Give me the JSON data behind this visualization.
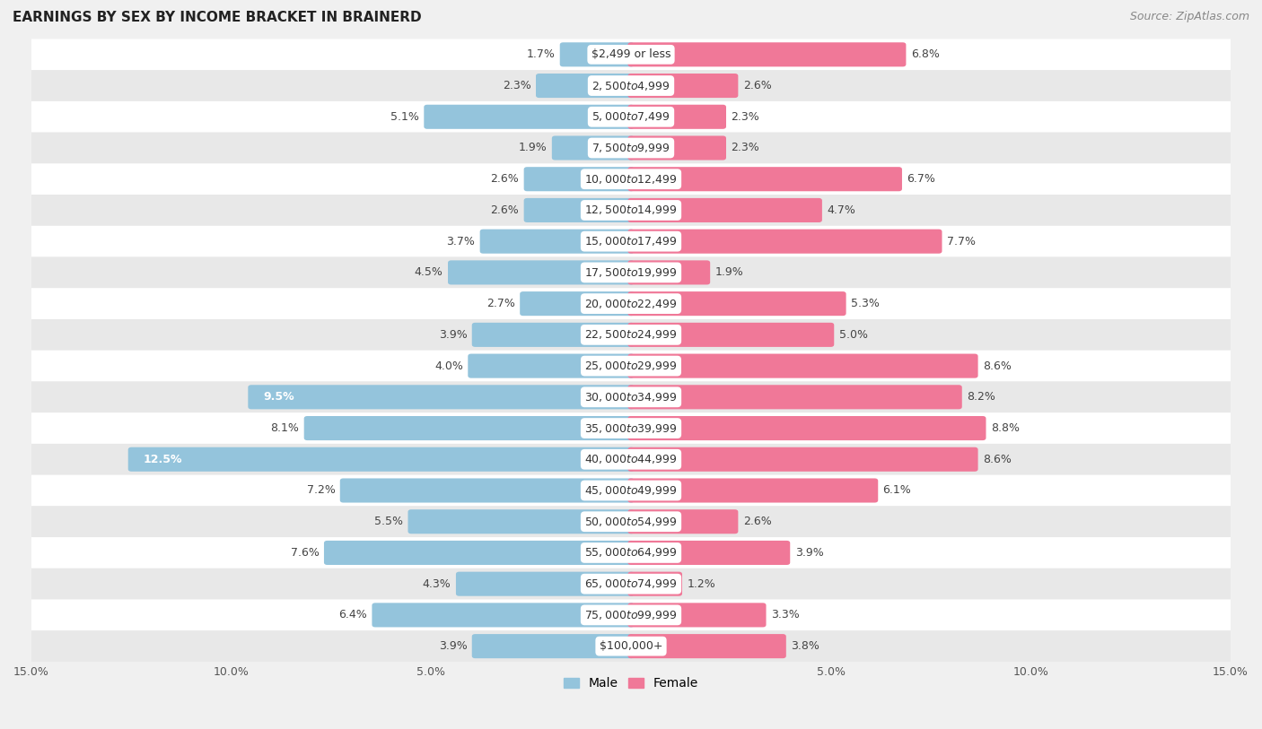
{
  "title": "EARNINGS BY SEX BY INCOME BRACKET IN BRAINERD",
  "source": "Source: ZipAtlas.com",
  "categories": [
    "$2,499 or less",
    "$2,500 to $4,999",
    "$5,000 to $7,499",
    "$7,500 to $9,999",
    "$10,000 to $12,499",
    "$12,500 to $14,999",
    "$15,000 to $17,499",
    "$17,500 to $19,999",
    "$20,000 to $22,499",
    "$22,500 to $24,999",
    "$25,000 to $29,999",
    "$30,000 to $34,999",
    "$35,000 to $39,999",
    "$40,000 to $44,999",
    "$45,000 to $49,999",
    "$50,000 to $54,999",
    "$55,000 to $64,999",
    "$65,000 to $74,999",
    "$75,000 to $99,999",
    "$100,000+"
  ],
  "male_values": [
    1.7,
    2.3,
    5.1,
    1.9,
    2.6,
    2.6,
    3.7,
    4.5,
    2.7,
    3.9,
    4.0,
    9.5,
    8.1,
    12.5,
    7.2,
    5.5,
    7.6,
    4.3,
    6.4,
    3.9
  ],
  "female_values": [
    6.8,
    2.6,
    2.3,
    2.3,
    6.7,
    4.7,
    7.7,
    1.9,
    5.3,
    5.0,
    8.6,
    8.2,
    8.8,
    8.6,
    6.1,
    2.6,
    3.9,
    1.2,
    3.3,
    3.8
  ],
  "male_color": "#94C4DC",
  "female_color": "#F07898",
  "male_light_color": "#C5DFEE",
  "female_light_color": "#F5AABB",
  "axis_max": 15.0,
  "background_color": "#f0f0f0",
  "row_color_even": "#ffffff",
  "row_color_odd": "#e8e8e8",
  "title_fontsize": 11,
  "tick_fontsize": 9,
  "category_fontsize": 9,
  "value_fontsize": 9,
  "legend_fontsize": 10,
  "source_fontsize": 9
}
